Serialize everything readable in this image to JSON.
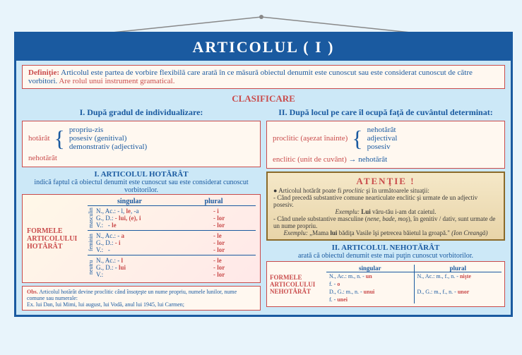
{
  "title": "ARTICOLUL ( I )",
  "def": {
    "label": "Definiţie:",
    "text": "Articolul este partea de vorbire flexibilă care arată în ce măsură obiectul denumit este cunoscut sau este considerat cunoscut de către vorbitori.",
    "extra": "Are rolul unui instrument gramatical."
  },
  "classif": "CLASIFICARE",
  "h1": "I. După gradul de individualizare:",
  "h2": "II. După locul pe care îl ocupă faţă de cuvântul determinat:",
  "left_brace": {
    "term": "hotărât",
    "items": [
      "propriu-zis",
      "posesiv (genitival)",
      "demonstrativ (adjectival)"
    ],
    "term2": "nehotărât"
  },
  "right_brace": {
    "proclitic": "proclitic (aşezat înainte)",
    "proc_items": [
      "nehotărât",
      "adjectival",
      "posesiv"
    ],
    "enclitic": "enclitic (unit de cuvânt)",
    "enc_target": "nehotărât"
  },
  "art_hot": {
    "title": "I. ARTICOLUL HOTĂRÂT",
    "sub": "indică faptul că obiectul denumit este cunoscut sau este considerat cunoscut vorbitorilor.",
    "form_label": "FORMELE ARTICOLULUI HOTĂRÂT",
    "hdr_sg": "singular",
    "hdr_pl": "plural",
    "masc": {
      "g": "masculin",
      "rows": [
        [
          "N., Ac.: - l, <b>le</b>, -a",
          "- i"
        ],
        [
          "G., D.: <b>- lui, (e), i</b>",
          "- lor"
        ],
        [
          "V.: &nbsp;&nbsp;- <b>le</b>",
          "- lor"
        ]
      ]
    },
    "fem": {
      "g": "feminin",
      "rows": [
        [
          "N., Ac.: - <b>a</b>",
          "- le"
        ],
        [
          "G., D.: <b>- i</b>",
          "- lor"
        ],
        [
          "V.: &nbsp;&nbsp;-",
          "- lor"
        ]
      ]
    },
    "neu": {
      "g": "neutru",
      "rows": [
        [
          "N., Ac.: - <b>l</b>",
          "- le"
        ],
        [
          "G., D.: - <b>lui</b>",
          "- lor"
        ],
        [
          "V.:",
          "- lor"
        ]
      ]
    }
  },
  "obs": {
    "label": "Obs.",
    "text": "Articolul hotărât devine proclitic când însoţeşte un nume propriu, numele lunilor, nume comune sau numerale:",
    "ex": "Ex. lui Dan, lui Mimi, lui august, lui Vodă, anul lui 1945, lui Carmen;"
  },
  "attn": {
    "title": "ATENŢIE !",
    "l1": "Articolul hotărât poate fi <i>proclitic</i> şi în următoarele situaţii:",
    "l2": "- Când precedă substantive comune nearticulate enclitic şi urmate de un adjectiv posesiv.",
    "l3": "<i>Exemplu:</i> <b>Lui</b> văru-tău i-am dat caietul.",
    "l4": "- Când unele substantive masculine (<i>nene, bade, moş</i>), în genitiv / dativ, sunt urmate de un nume propriu.",
    "l5": "<i>Exemplu:</i> „Mama <b>lui</b> bădiţa Vasile îşi petrecea băietul la groapă.\" <i>(Ion Creangă)</i>"
  },
  "art_neh": {
    "title": "II. ARTICOLUL NEHOTĂRÂT",
    "sub": "arată că obiectul denumit este mai puţin cunoscut vorbitorilor.",
    "form_label": "FORMELE ARTICOLULUI NEHOTĂRÂT",
    "hdr_sg": "singular",
    "hdr_pl": "plural",
    "sg1": "N., Ac.: m., n. - <b>un</b>",
    "sg2": "f. - <b>o</b>",
    "sg3": "D., G.: m., n. - <b>unui</b>",
    "sg4": "f. - <b>unei</b>",
    "pl1": "N., Ac.: m., f., n. - <b>nişte</b>",
    "pl2": "D., G.: m., f., n. - <b>unor</b>"
  }
}
